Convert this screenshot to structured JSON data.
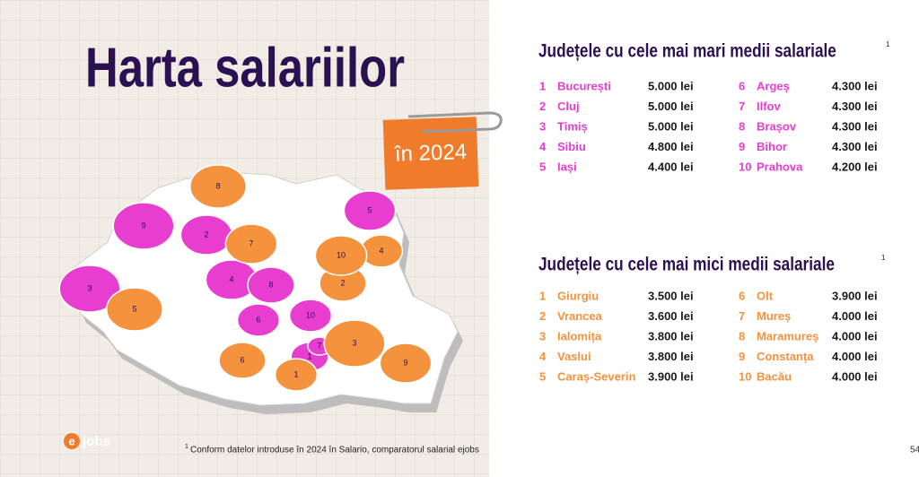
{
  "title": "Harta salariilor",
  "badge": "în 2024",
  "top": {
    "heading": "Județele cu cele mai mari medii salariale",
    "note_mark": "1",
    "rows": [
      {
        "rank": 1,
        "name": "București",
        "value": "5.000 lei"
      },
      {
        "rank": 2,
        "name": "Cluj",
        "value": "5.000 lei"
      },
      {
        "rank": 3,
        "name": "Timiș",
        "value": "5.000 lei"
      },
      {
        "rank": 4,
        "name": "Sibiu",
        "value": "4.800 lei"
      },
      {
        "rank": 5,
        "name": "Iași",
        "value": "4.400 lei"
      },
      {
        "rank": 6,
        "name": "Argeș",
        "value": "4.300 lei"
      },
      {
        "rank": 7,
        "name": "Ilfov",
        "value": "4.300 lei"
      },
      {
        "rank": 8,
        "name": "Brașov",
        "value": "4.300 lei"
      },
      {
        "rank": 9,
        "name": "Bihor",
        "value": "4.300 lei"
      },
      {
        "rank": 10,
        "name": "Prahova",
        "value": "4.200 lei"
      }
    ]
  },
  "bottom": {
    "heading": "Județele cu cele mai mici medii salariale",
    "note_mark": "1",
    "rows": [
      {
        "rank": 1,
        "name": "Giurgiu",
        "value": "3.500 lei"
      },
      {
        "rank": 2,
        "name": "Vrancea",
        "value": "3.600 lei"
      },
      {
        "rank": 3,
        "name": "Ialomița",
        "value": "3.800 lei"
      },
      {
        "rank": 4,
        "name": "Vaslui",
        "value": "3.800 lei"
      },
      {
        "rank": 5,
        "name": "Caraș-Severin",
        "value": "3.900 lei"
      },
      {
        "rank": 6,
        "name": "Olt",
        "value": "3.900 lei"
      },
      {
        "rank": 7,
        "name": "Mureș",
        "value": "4.000 lei"
      },
      {
        "rank": 8,
        "name": "Maramureș",
        "value": "4.000 lei"
      },
      {
        "rank": 9,
        "name": "Constanța",
        "value": "4.000 lei"
      },
      {
        "rank": 10,
        "name": "Bacău",
        "value": "4.000 lei"
      }
    ]
  },
  "logo": "jobs",
  "logo_mark": "e",
  "footnote_mark": "1",
  "footnote": "Conform datelor introduse în 2024 în Salario, comparatorul salarial ejobs",
  "page": "54"
}
